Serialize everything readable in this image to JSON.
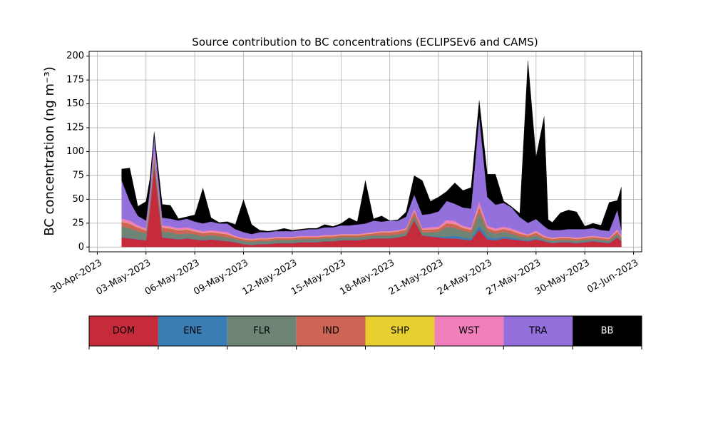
{
  "chart_data": {
    "type": "area",
    "stacked": true,
    "title": "Source contribution to BC concentrations (ECLIPSEv6 and CAMS)",
    "xlabel": "",
    "ylabel": "BC concentration (ng m⁻³)",
    "ylim": [
      -5,
      205
    ],
    "xlim": [
      "2023-04-29T12:00",
      "2023-06-02T12:00"
    ],
    "grid": true,
    "x_ticks": [
      "30-Apr-2023",
      "03-May-2023",
      "06-May-2023",
      "09-May-2023",
      "12-May-2023",
      "15-May-2023",
      "18-May-2023",
      "21-May-2023",
      "24-May-2023",
      "27-May-2023",
      "30-May-2023",
      "02-Jun-2023"
    ],
    "y_ticks": [
      0,
      25,
      50,
      75,
      100,
      125,
      150,
      175,
      200
    ],
    "legend_position": "below",
    "x": [
      "2023-05-01T12:00",
      "2023-05-02T00:00",
      "2023-05-02T12:00",
      "2023-05-03T00:00",
      "2023-05-03T06:00",
      "2023-05-03T12:00",
      "2023-05-04T00:00",
      "2023-05-04T12:00",
      "2023-05-05T00:00",
      "2023-05-05T12:00",
      "2023-05-06T00:00",
      "2023-05-06T12:00",
      "2023-05-07T00:00",
      "2023-05-07T12:00",
      "2023-05-08T00:00",
      "2023-05-08T12:00",
      "2023-05-09T00:00",
      "2023-05-09T12:00",
      "2023-05-10T00:00",
      "2023-05-10T12:00",
      "2023-05-11T00:00",
      "2023-05-11T12:00",
      "2023-05-12T00:00",
      "2023-05-12T12:00",
      "2023-05-13T00:00",
      "2023-05-13T12:00",
      "2023-05-14T00:00",
      "2023-05-14T12:00",
      "2023-05-15T00:00",
      "2023-05-15T12:00",
      "2023-05-16T00:00",
      "2023-05-16T12:00",
      "2023-05-17T00:00",
      "2023-05-17T12:00",
      "2023-05-18T00:00",
      "2023-05-18T12:00",
      "2023-05-19T00:00",
      "2023-05-19T12:00",
      "2023-05-20T00:00",
      "2023-05-20T12:00",
      "2023-05-21T00:00",
      "2023-05-21T12:00",
      "2023-05-22T00:00",
      "2023-05-22T12:00",
      "2023-05-23T00:00",
      "2023-05-23T12:00",
      "2023-05-24T00:00",
      "2023-05-24T12:00",
      "2023-05-25T00:00",
      "2023-05-25T12:00",
      "2023-05-26T00:00",
      "2023-05-26T12:00",
      "2023-05-27T00:00",
      "2023-05-27T12:00",
      "2023-05-27T18:00",
      "2023-05-28T00:00",
      "2023-05-28T12:00",
      "2023-05-29T00:00",
      "2023-05-29T12:00",
      "2023-05-30T00:00",
      "2023-05-30T12:00",
      "2023-05-31T00:00",
      "2023-05-31T12:00",
      "2023-06-01T00:00",
      "2023-06-01T06:00"
    ],
    "series": [
      {
        "name": "DOM",
        "color": "#c62b3b",
        "values": [
          10,
          9,
          8,
          7,
          40,
          85,
          10,
          9,
          8,
          9,
          8,
          7,
          8,
          7,
          6,
          5,
          3,
          2,
          3,
          3,
          4,
          4,
          4,
          5,
          5,
          5,
          6,
          6,
          7,
          7,
          7,
          8,
          9,
          9,
          9,
          10,
          12,
          28,
          12,
          11,
          10,
          9,
          9,
          8,
          7,
          18,
          8,
          7,
          9,
          8,
          7,
          6,
          8,
          6,
          5,
          4,
          5,
          5,
          4,
          5,
          6,
          5,
          4,
          10,
          6
        ]
      },
      {
        "name": "ENE",
        "color": "#3a7db5",
        "values": [
          0.5,
          0.5,
          0.4,
          0.4,
          0.5,
          0.5,
          0.4,
          0.4,
          0.4,
          0.4,
          0.4,
          0.4,
          0.4,
          0.4,
          0.3,
          0.3,
          0.3,
          0.3,
          0.3,
          0.3,
          0.3,
          0.3,
          0.3,
          0.3,
          0.3,
          0.3,
          0.3,
          0.3,
          0.3,
          0.3,
          0.3,
          0.3,
          0.3,
          0.3,
          0.3,
          0.3,
          0.4,
          0.5,
          0.4,
          0.5,
          1,
          2,
          3,
          2,
          2,
          4,
          3,
          2,
          2,
          2,
          1,
          1,
          1,
          0.5,
          0.5,
          0.5,
          0.5,
          0.5,
          0.5,
          0.5,
          0.5,
          0.5,
          0.5,
          0.5,
          0.5
        ]
      },
      {
        "name": "FLR",
        "color": "#6e8474",
        "values": [
          11,
          10,
          8,
          7,
          6,
          7,
          6,
          6,
          5,
          5,
          5,
          4,
          4,
          4,
          4,
          3,
          3,
          3,
          3,
          3,
          3,
          3,
          3,
          3,
          3,
          3,
          3,
          3,
          3,
          3,
          3,
          3,
          3,
          3,
          3,
          3,
          3,
          4,
          3,
          4,
          5,
          10,
          8,
          7,
          6,
          14,
          6,
          5,
          5,
          4,
          3,
          3,
          3,
          2,
          2,
          2,
          2,
          2,
          2,
          2,
          2,
          2,
          2,
          3,
          2
        ]
      },
      {
        "name": "IND",
        "color": "#cc6556",
        "values": [
          5,
          5,
          4,
          3,
          4,
          5,
          4,
          4,
          4,
          4,
          3,
          3,
          3,
          3,
          3,
          2,
          2,
          2,
          2,
          2,
          2,
          2,
          2,
          2,
          2,
          2,
          2,
          2,
          2,
          2,
          2,
          2,
          2,
          3,
          3,
          3,
          3,
          5,
          3,
          3,
          3,
          4,
          4,
          3,
          3,
          6,
          3,
          3,
          3,
          3,
          3,
          2,
          3,
          2,
          2,
          2,
          2,
          2,
          2,
          2,
          2,
          2,
          2,
          3,
          2
        ]
      },
      {
        "name": "SHP",
        "color": "#e6cf2e",
        "values": [
          0.3,
          0.3,
          0.3,
          0.3,
          0.3,
          0.3,
          0.3,
          0.3,
          0.3,
          0.3,
          0.3,
          0.3,
          0.3,
          0.3,
          0.3,
          0.3,
          0.3,
          0.3,
          0.3,
          0.3,
          0.3,
          0.3,
          0.3,
          0.3,
          0.3,
          0.3,
          0.3,
          0.3,
          0.3,
          0.3,
          0.3,
          0.3,
          0.3,
          0.3,
          0.3,
          0.3,
          0.3,
          0.3,
          0.3,
          0.3,
          0.3,
          0.3,
          0.3,
          0.3,
          0.3,
          0.5,
          0.3,
          0.3,
          0.3,
          0.3,
          0.3,
          0.3,
          0.3,
          0.3,
          0.3,
          0.3,
          0.3,
          0.3,
          0.3,
          0.3,
          0.3,
          0.3,
          0.3,
          0.3,
          0.3
        ]
      },
      {
        "name": "WST",
        "color": "#f07fbc",
        "values": [
          3,
          3,
          2,
          2,
          2,
          3,
          2,
          2,
          2,
          2,
          2,
          2,
          2,
          2,
          2,
          1,
          1,
          1,
          1,
          1,
          1,
          1,
          1,
          1,
          1,
          1,
          1,
          1,
          1,
          1,
          1,
          1,
          1,
          1,
          1,
          1,
          1,
          2,
          1,
          2,
          2,
          3,
          3,
          2,
          2,
          5,
          2,
          2,
          2,
          2,
          2,
          1,
          2,
          1,
          1,
          1,
          1,
          1,
          1,
          1,
          1,
          1,
          1,
          2,
          1
        ]
      },
      {
        "name": "TRA",
        "color": "#9370db",
        "values": [
          40,
          20,
          10,
          8,
          10,
          15,
          8,
          8,
          8,
          9,
          8,
          8,
          9,
          8,
          9,
          7,
          6,
          5,
          6,
          6,
          6,
          6,
          6,
          6,
          7,
          7,
          8,
          8,
          9,
          9,
          10,
          10,
          12,
          10,
          11,
          10,
          12,
          15,
          14,
          14,
          16,
          20,
          18,
          19,
          20,
          90,
          30,
          25,
          25,
          22,
          15,
          12,
          12,
          10,
          8,
          8,
          7,
          8,
          9,
          8,
          8,
          7,
          7,
          20,
          6
        ]
      },
      {
        "name": "BB",
        "color": "#000000",
        "values": [
          12,
          35,
          10,
          20,
          10,
          5,
          14,
          14,
          2,
          2,
          7,
          37,
          4,
          1,
          2,
          5,
          34,
          10,
          2,
          1,
          1,
          3,
          1,
          1,
          1,
          1,
          3,
          1,
          2,
          8,
          3,
          45,
          2,
          6,
          0,
          1,
          5,
          20,
          36,
          13,
          15,
          10,
          22,
          18,
          22,
          16,
          24,
          32,
          2,
          1,
          4,
          170,
          65,
          115,
          10,
          8,
          18,
          20,
          18,
          3,
          5,
          5,
          30,
          10,
          45
        ]
      }
    ]
  },
  "legend": [
    {
      "label": "DOM",
      "color": "#c62b3b",
      "text_color": "#000000"
    },
    {
      "label": "ENE",
      "color": "#3a7db5",
      "text_color": "#000000"
    },
    {
      "label": "FLR",
      "color": "#6e8474",
      "text_color": "#000000"
    },
    {
      "label": "IND",
      "color": "#cc6556",
      "text_color": "#000000"
    },
    {
      "label": "SHP",
      "color": "#e6cf2e",
      "text_color": "#000000"
    },
    {
      "label": "WST",
      "color": "#f07fbc",
      "text_color": "#000000"
    },
    {
      "label": "TRA",
      "color": "#9370db",
      "text_color": "#000000"
    },
    {
      "label": "BB",
      "color": "#000000",
      "text_color": "#ffffff"
    }
  ]
}
